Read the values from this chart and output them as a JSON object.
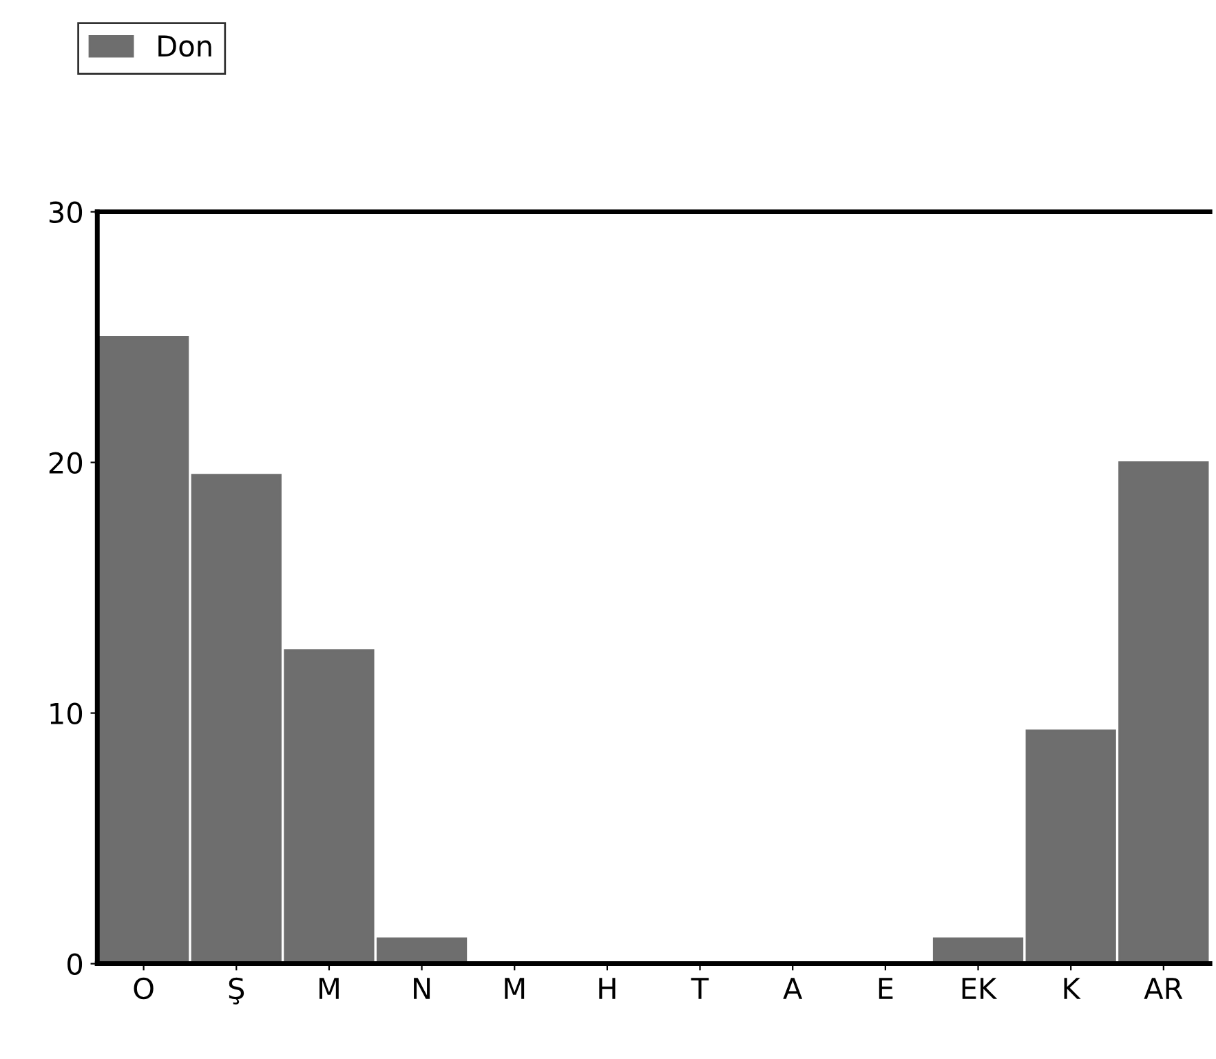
{
  "chart_data": {
    "type": "bar",
    "categories": [
      "O",
      "Ş",
      "M",
      "N",
      "M",
      "H",
      "T",
      "A",
      "E",
      "EK",
      "K",
      "AR"
    ],
    "series": [
      {
        "name": "Don",
        "color": "#6e6e6e",
        "values": [
          25,
          19.5,
          12.5,
          1,
          0,
          0,
          0,
          0,
          0,
          1,
          9.3,
          20
        ]
      }
    ],
    "ylim": [
      0,
      30
    ],
    "yticks": [
      0,
      10,
      20,
      30
    ],
    "grid": false,
    "legend": "top left"
  }
}
